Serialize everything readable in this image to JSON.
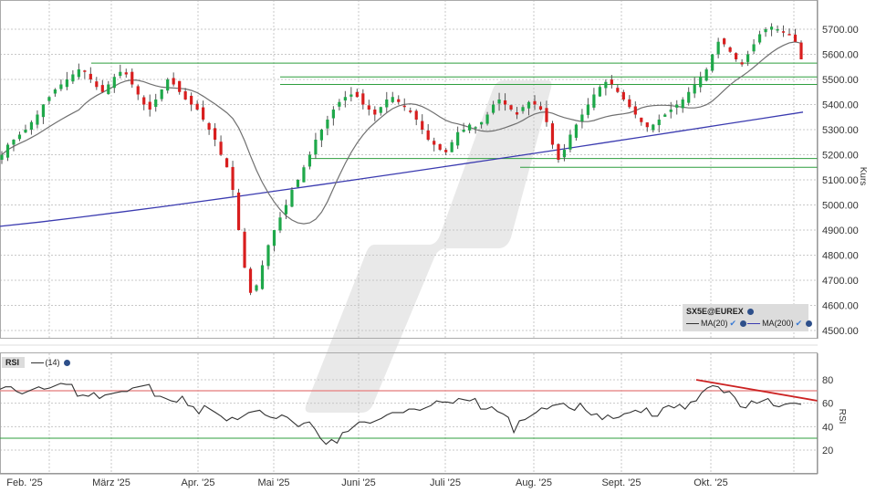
{
  "chart_data": [
    {
      "type": "candlestick",
      "title": "SX5E@EUREX",
      "instrument": "SX5E@EUREX",
      "ylabel": "Kurs",
      "ylim": [
        4450,
        5760
      ],
      "y_ticks": [
        "5700.00",
        "5600.00",
        "5500.00",
        "5400.00",
        "5300.00",
        "5200.00",
        "5100.00",
        "5000.00",
        "4900.00",
        "4800.00",
        "4700.00",
        "4600.00",
        "4500.00"
      ],
      "x_ticks": [
        "Feb. '25",
        "März '25",
        "Apr. '25",
        "Mai '25",
        "Juni '25",
        "Juli '25",
        "Aug. '25",
        "Sept. '25",
        "Okt. '25"
      ],
      "legend": [
        {
          "name": "MA(20)",
          "color": "#707070"
        },
        {
          "name": "MA(200)",
          "color": "#3b3bb0"
        }
      ],
      "horizontal_lines": [
        {
          "y": 5565,
          "x_start": "Feb. '25 +",
          "color": "#2e9e3e"
        },
        {
          "y": 5510,
          "x_start": "Mai '25 +",
          "color": "#2e9e3e"
        },
        {
          "y": 5480,
          "x_start": "Mai '25 +",
          "color": "#2e9e3e"
        },
        {
          "y": 5185,
          "x_start": "Mai '25 +",
          "color": "#2e9e3e"
        },
        {
          "y": 5150,
          "x_start": "Aug. '25",
          "color": "#2e9e3e"
        }
      ],
      "approx_close": [
        5200,
        5240,
        5260,
        5280,
        5300,
        5330,
        5360,
        5400,
        5430,
        5460,
        5480,
        5500,
        5520,
        5540,
        5530,
        5500,
        5470,
        5450,
        5480,
        5510,
        5530,
        5520,
        5480,
        5440,
        5400,
        5380,
        5420,
        5460,
        5500,
        5480,
        5450,
        5420,
        5400,
        5380,
        5340,
        5300,
        5260,
        5200,
        5150,
        5060,
        4900,
        4750,
        4650,
        4680,
        4760,
        4840,
        4900,
        4950,
        5000,
        5060,
        5100,
        5150,
        5200,
        5260,
        5300,
        5340,
        5380,
        5410,
        5430,
        5440,
        5430,
        5400,
        5380,
        5360,
        5390,
        5420,
        5430,
        5410,
        5390,
        5370,
        5340,
        5300,
        5260,
        5240,
        5220,
        5210,
        5250,
        5290,
        5300,
        5320,
        5310,
        5330,
        5360,
        5400,
        5420,
        5400,
        5380,
        5360,
        5390,
        5410,
        5400,
        5380,
        5330,
        5240,
        5180,
        5220,
        5280,
        5320,
        5360,
        5400,
        5440,
        5470,
        5490,
        5480,
        5450,
        5420,
        5390,
        5360,
        5330,
        5310,
        5320,
        5340,
        5360,
        5380,
        5400,
        5420,
        5450,
        5480,
        5510,
        5540,
        5600,
        5650,
        5640,
        5610,
        5580,
        5560,
        5600,
        5640,
        5680,
        5700,
        5710,
        5700,
        5690,
        5680,
        5650,
        5580
      ]
    },
    {
      "type": "line",
      "title": "RSI",
      "parameter": "(14)",
      "ylabel": "RSI",
      "ylim": [
        0,
        90
      ],
      "y_ticks": [
        "80",
        "60",
        "40",
        "20"
      ],
      "overbought": 70,
      "oversold": 30,
      "trendline": {
        "from_rsi": 78,
        "to_rsi": 62,
        "color": "#cc2222"
      },
      "values": [
        72,
        74,
        74,
        70,
        68,
        70,
        72,
        74,
        72,
        73,
        75,
        77,
        76,
        76,
        66,
        67,
        66,
        69,
        64,
        67,
        68,
        69,
        70,
        70,
        73,
        74,
        75,
        76,
        66,
        66,
        64,
        62,
        61,
        66,
        58,
        57,
        51,
        58,
        55,
        52,
        49,
        45,
        48,
        46,
        49,
        52,
        53,
        54,
        50,
        48,
        47,
        50,
        48,
        44,
        40,
        43,
        44,
        38,
        30,
        25,
        29,
        26,
        35,
        36,
        40,
        44,
        44,
        43,
        45,
        47,
        50,
        52,
        52,
        52,
        55,
        55,
        54,
        56,
        58,
        62,
        61,
        61,
        60,
        64,
        63,
        62,
        64,
        55,
        55,
        57,
        53,
        51,
        48,
        35,
        45,
        46,
        49,
        52,
        56,
        55,
        58,
        59,
        60,
        56,
        54,
        60,
        54,
        50,
        51,
        46,
        50,
        47,
        48,
        51,
        52,
        54,
        52,
        56,
        49,
        49,
        56,
        58,
        56,
        59,
        55,
        61,
        62,
        69,
        73,
        75,
        74,
        69,
        70,
        65,
        57,
        56,
        62,
        60,
        62,
        64,
        58,
        57,
        59,
        60,
        60,
        59
      ]
    }
  ],
  "price_axis": {
    "ticks": [
      "5700.00",
      "5600.00",
      "5500.00",
      "5400.00",
      "5300.00",
      "5200.00",
      "5100.00",
      "5000.00",
      "4900.00",
      "4800.00",
      "4700.00",
      "4600.00",
      "4500.00"
    ],
    "title": "Kurs"
  },
  "rsi_axis": {
    "ticks": [
      "80",
      "60",
      "40",
      "20"
    ],
    "title": "RSI"
  },
  "time_axis": {
    "ticks": [
      "Feb. '25",
      "März '25",
      "Apr. '25",
      "Mai '25",
      "Juni '25",
      "Juli '25",
      "Aug. '25",
      "Sept. '25",
      "Okt. '25"
    ]
  },
  "legend": {
    "title": "SX5E@EUREX",
    "ma20": "MA(20)",
    "ma200": "MA(200)"
  },
  "rsi_panel": {
    "label": "RSI",
    "param": "(14)"
  },
  "colors": {
    "up": "#1fa84a",
    "down": "#d81e1e",
    "ma20": "#707070",
    "ma200": "#3b3bb0",
    "support": "#2e9e3e",
    "rsi_overbought": "#e89090",
    "rsi_oversold": "#2e9e3e",
    "trendline": "#cc2222",
    "grid": "#c8c8c8",
    "watermark": "#e8e8e8"
  }
}
